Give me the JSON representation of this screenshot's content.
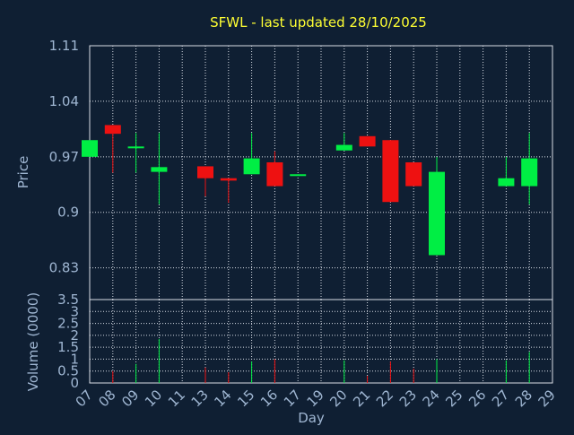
{
  "chart_data": {
    "type": "candlestick",
    "title": "SFWL - last updated 28/10/2025",
    "xlabel": "Day",
    "x_ticks": [
      "07",
      "08",
      "09",
      "10",
      "11",
      "13",
      "14",
      "15",
      "16",
      "17",
      "19",
      "20",
      "21",
      "22",
      "23",
      "24",
      "25",
      "26",
      "27",
      "28",
      "29"
    ],
    "colors": {
      "up": "#00ee44",
      "down": "#ee1111",
      "background": "#0f1f33",
      "title": "#ffff33",
      "text": "#9fb6d2",
      "grid": "#d8dde6"
    },
    "price": {
      "ylabel": "Price",
      "ylim": [
        0.79,
        1.11
      ],
      "y_ticks": [
        0.83,
        0.9,
        0.97,
        1.04,
        1.11
      ],
      "y_tick_labels": [
        "0.83",
        "0.9",
        "0.97",
        "1.04",
        "1.11"
      ],
      "candles": [
        {
          "day": "07",
          "open": 0.97,
          "close": 0.991,
          "high": 0.991,
          "low": 0.97
        },
        {
          "day": "08",
          "open": 1.01,
          "close": 0.999,
          "high": 1.01,
          "low": 0.95
        },
        {
          "day": "09",
          "open": 0.981,
          "close": 0.983,
          "high": 1.0,
          "low": 0.95
        },
        {
          "day": "10",
          "open": 0.951,
          "close": 0.957,
          "high": 1.0,
          "low": 0.91
        },
        {
          "day": "13",
          "open": 0.958,
          "close": 0.943,
          "high": 0.958,
          "low": 0.92
        },
        {
          "day": "14",
          "open": 0.943,
          "close": 0.94,
          "high": 0.943,
          "low": 0.912
        },
        {
          "day": "15",
          "open": 0.948,
          "close": 0.968,
          "high": 1.0,
          "low": 0.948
        },
        {
          "day": "16",
          "open": 0.963,
          "close": 0.933,
          "high": 0.977,
          "low": 0.933
        },
        {
          "day": "17",
          "open": 0.946,
          "close": 0.948,
          "high": 0.948,
          "low": 0.946
        },
        {
          "day": "20",
          "open": 0.978,
          "close": 0.985,
          "high": 1.0,
          "low": 0.978
        },
        {
          "day": "21",
          "open": 0.996,
          "close": 0.983,
          "high": 0.996,
          "low": 0.983
        },
        {
          "day": "22",
          "open": 0.991,
          "close": 0.913,
          "high": 0.991,
          "low": 0.913
        },
        {
          "day": "23",
          "open": 0.963,
          "close": 0.933,
          "high": 0.963,
          "low": 0.933
        },
        {
          "day": "24",
          "open": 0.846,
          "close": 0.951,
          "high": 0.97,
          "low": 0.846
        },
        {
          "day": "27",
          "open": 0.933,
          "close": 0.943,
          "high": 0.97,
          "low": 0.933
        },
        {
          "day": "28",
          "open": 0.933,
          "close": 0.968,
          "high": 1.0,
          "low": 0.91
        }
      ]
    },
    "volume": {
      "ylabel": "Volume (0000)",
      "ylim": [
        0,
        3.5
      ],
      "y_ticks": [
        0,
        0.5,
        1,
        1.5,
        2,
        2.5,
        3,
        3.5
      ],
      "y_tick_labels": [
        "0",
        "0.5",
        "1",
        "1.5",
        "2",
        "2.5",
        "3",
        "3.5"
      ],
      "bars": [
        {
          "day": "08",
          "value": 0.5,
          "direction": "down"
        },
        {
          "day": "09",
          "value": 0.8,
          "direction": "up"
        },
        {
          "day": "10",
          "value": 1.85,
          "direction": "up"
        },
        {
          "day": "13",
          "value": 0.65,
          "direction": "down"
        },
        {
          "day": "14",
          "value": 0.45,
          "direction": "down"
        },
        {
          "day": "15",
          "value": 0.9,
          "direction": "up"
        },
        {
          "day": "16",
          "value": 1.0,
          "direction": "down"
        },
        {
          "day": "20",
          "value": 0.95,
          "direction": "up"
        },
        {
          "day": "21",
          "value": 0.3,
          "direction": "down"
        },
        {
          "day": "22",
          "value": 0.9,
          "direction": "down"
        },
        {
          "day": "23",
          "value": 0.6,
          "direction": "down"
        },
        {
          "day": "24",
          "value": 1.0,
          "direction": "up"
        },
        {
          "day": "27",
          "value": 0.95,
          "direction": "up"
        },
        {
          "day": "28",
          "value": 1.3,
          "direction": "up"
        }
      ]
    },
    "grid": true
  }
}
